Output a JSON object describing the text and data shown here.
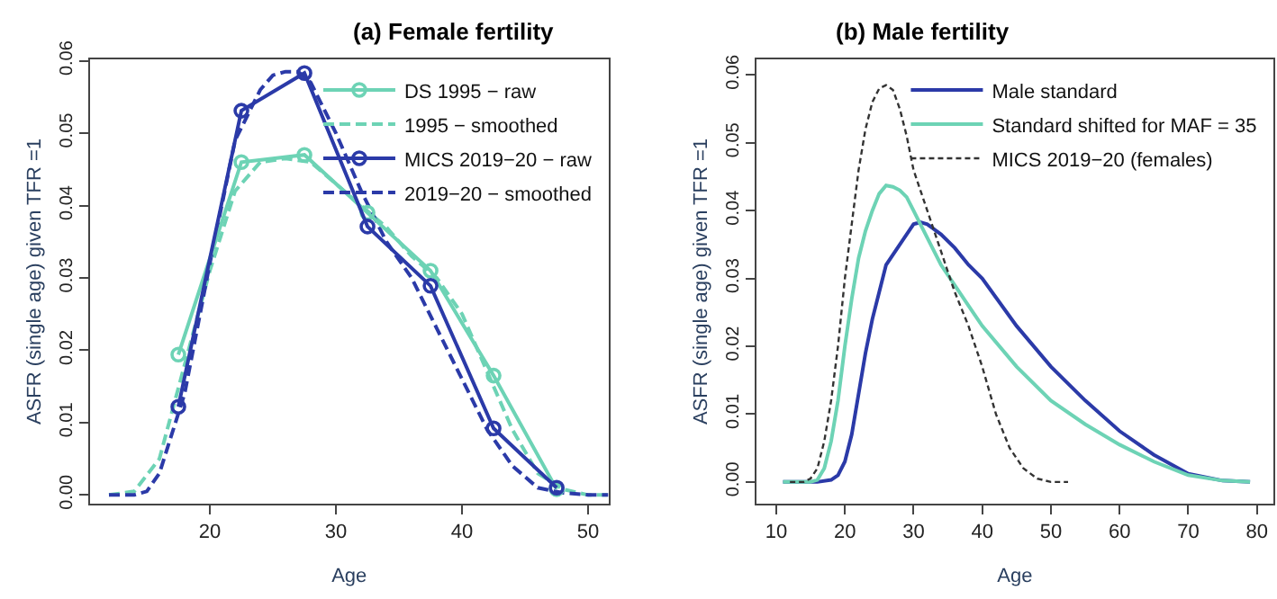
{
  "chart_data": [
    {
      "type": "line",
      "title": "(a) Female fertility",
      "xlabel": "Age",
      "ylabel": "ASFR (single age) given TFR =1",
      "xlim": [
        10.5,
        51.6
      ],
      "ylim": [
        -0.0012,
        0.0602
      ],
      "xticks": [
        20,
        30,
        40,
        50
      ],
      "yticks": [
        {
          "value": 0,
          "label": "0.00"
        },
        0.01,
        0.02,
        0.03,
        0.04,
        0.05,
        0.06
      ],
      "legend": "top right",
      "series": [
        {
          "name": "DS 1995 − raw",
          "color": "#6dd3b5",
          "marker": "circle",
          "line_style": "solid",
          "x": [
            17.5,
            22.5,
            27.5,
            32.5,
            37.5,
            42.5,
            47.5
          ],
          "values": [
            0.0194,
            0.046,
            0.047,
            0.039,
            0.031,
            0.0165,
            0.0008
          ]
        },
        {
          "name": "1995 − smoothed",
          "color": "#6dd3b5",
          "marker": "none",
          "line_style": "dashed",
          "x": [
            12,
            14,
            16,
            18,
            20,
            22,
            24,
            26,
            28,
            30,
            32,
            34,
            36,
            38,
            40,
            42,
            44,
            46,
            48,
            50,
            51.6
          ],
          "values": [
            0,
            0.0005,
            0.005,
            0.018,
            0.031,
            0.042,
            0.046,
            0.0465,
            0.046,
            0.043,
            0.04,
            0.037,
            0.033,
            0.03,
            0.025,
            0.017,
            0.009,
            0.003,
            0.0008,
            0,
            0
          ]
        },
        {
          "name": "MICS 2019−20 − raw",
          "color": "#2b3aa8",
          "marker": "circle",
          "line_style": "solid",
          "x": [
            17.5,
            22.5,
            27.5,
            32.5,
            37.5,
            42.5,
            47.5
          ],
          "values": [
            0.0122,
            0.0531,
            0.0583,
            0.0371,
            0.0289,
            0.0092,
            0.001
          ]
        },
        {
          "name": "2019−20 − smoothed",
          "color": "#2b3aa8",
          "marker": "none",
          "line_style": "dashed",
          "x": [
            12,
            14,
            15,
            16,
            18,
            20,
            22,
            24,
            25,
            26,
            27,
            28,
            30,
            32,
            34,
            36,
            38,
            40,
            42,
            44,
            46,
            48,
            50,
            51.6
          ],
          "values": [
            0,
            0,
            0.0005,
            0.003,
            0.014,
            0.032,
            0.049,
            0.056,
            0.058,
            0.0585,
            0.0585,
            0.057,
            0.05,
            0.042,
            0.035,
            0.03,
            0.023,
            0.016,
            0.009,
            0.004,
            0.001,
            0.0003,
            0,
            0
          ]
        }
      ]
    },
    {
      "type": "line",
      "title": "(b) Male fertility",
      "xlabel": "Age",
      "ylabel": "ASFR (single age) given TFR =1",
      "xlim": [
        7.1,
        82.4
      ],
      "ylim": [
        -0.0032,
        0.0623
      ],
      "xticks": [
        10,
        20,
        30,
        40,
        50,
        60,
        70,
        80
      ],
      "yticks": [
        {
          "value": 0,
          "label": "0.00"
        },
        0.01,
        0.02,
        0.03,
        0.04,
        0.05,
        0.06
      ],
      "legend": "top right",
      "marker": "none",
      "series": [
        {
          "name": "Male standard",
          "color": "#2b3aa8",
          "line_style": "solid",
          "x": [
            11,
            16,
            18,
            19,
            20,
            21,
            22,
            23,
            24,
            25,
            26,
            28,
            30,
            31,
            32,
            34,
            36,
            38,
            40,
            45,
            50,
            55,
            60,
            65,
            70,
            75,
            79
          ],
          "values": [
            0,
            0,
            0.0003,
            0.001,
            0.003,
            0.007,
            0.013,
            0.019,
            0.024,
            0.028,
            0.032,
            0.035,
            0.038,
            0.0383,
            0.038,
            0.0365,
            0.0345,
            0.032,
            0.03,
            0.023,
            0.017,
            0.012,
            0.0075,
            0.004,
            0.0012,
            0.0002,
            0
          ]
        },
        {
          "name": "Standard shifted for MAF = 35",
          "color": "#6dd3b5",
          "line_style": "solid",
          "x": [
            11,
            15,
            16,
            17,
            18,
            19,
            20,
            21,
            22,
            23,
            24,
            25,
            26,
            27,
            28,
            29,
            30,
            31,
            32,
            34,
            36,
            38,
            40,
            45,
            50,
            55,
            60,
            65,
            70,
            75,
            79
          ],
          "values": [
            0,
            0,
            0.0003,
            0.002,
            0.006,
            0.012,
            0.02,
            0.027,
            0.033,
            0.037,
            0.04,
            0.0425,
            0.0437,
            0.0435,
            0.043,
            0.042,
            0.04,
            0.038,
            0.036,
            0.032,
            0.029,
            0.026,
            0.023,
            0.017,
            0.012,
            0.0085,
            0.0055,
            0.003,
            0.001,
            0.0002,
            0
          ]
        },
        {
          "name": "MICS 2019−20 (females)",
          "color": "#333333",
          "line_style": "dotted",
          "x": [
            12,
            14,
            15,
            16,
            17,
            18,
            19,
            20,
            21,
            22,
            23,
            24,
            25,
            26,
            27,
            28,
            29,
            30,
            32,
            34,
            36,
            38,
            40,
            42,
            44,
            46,
            48,
            50,
            52.5
          ],
          "values": [
            0,
            0,
            0.0005,
            0.002,
            0.006,
            0.012,
            0.02,
            0.03,
            0.038,
            0.046,
            0.052,
            0.056,
            0.058,
            0.0585,
            0.0578,
            0.055,
            0.051,
            0.046,
            0.04,
            0.034,
            0.028,
            0.023,
            0.017,
            0.01,
            0.005,
            0.002,
            0.0005,
            0,
            0
          ]
        }
      ]
    }
  ]
}
